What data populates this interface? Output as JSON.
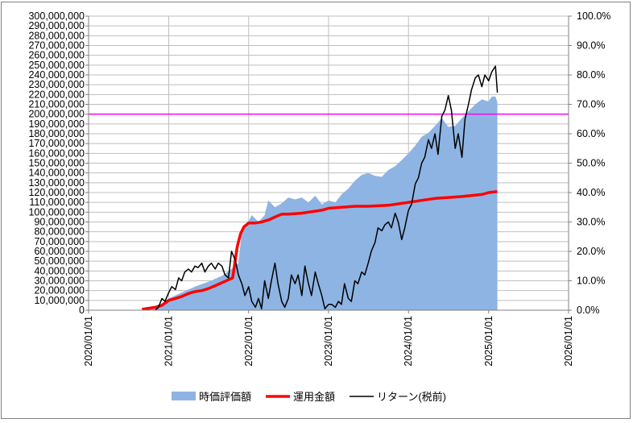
{
  "chart_data": {
    "type": "area",
    "x_tick_labels": [
      "2020/01/01",
      "2021/01/01",
      "2022/01/01",
      "2023/01/01",
      "2024/01/01",
      "2025/01/01",
      "2026/01/01"
    ],
    "x_range": [
      "2020/01/01",
      "2026/01/01"
    ],
    "y_left": {
      "min": 0,
      "max": 300000000,
      "step": 10000000,
      "tick_labels": [
        "0",
        "10,000,000",
        "20,000,000",
        "30,000,000",
        "40,000,000",
        "50,000,000",
        "60,000,000",
        "70,000,000",
        "80,000,000",
        "90,000,000",
        "100,000,000",
        "110,000,000",
        "120,000,000",
        "130,000,000",
        "140,000,000",
        "150,000,000",
        "160,000,000",
        "170,000,000",
        "180,000,000",
        "190,000,000",
        "200,000,000",
        "210,000,000",
        "220,000,000",
        "230,000,000",
        "240,000,000",
        "250,000,000",
        "260,000,000",
        "270,000,000",
        "280,000,000",
        "290,000,000",
        "300,000,000"
      ]
    },
    "y_right": {
      "min": 0,
      "max": 100,
      "step": 10,
      "unit": "%",
      "tick_labels": [
        "0.0%",
        "10.0%",
        "20.0%",
        "30.0%",
        "40.0%",
        "50.0%",
        "60.0%",
        "70.0%",
        "80.0%",
        "90.0%",
        "100.0%"
      ]
    },
    "grid": true,
    "legend_position": "bottom",
    "reference_line": {
      "y": 200000000,
      "axis": "left",
      "color": "#ff00ff"
    },
    "series": [
      {
        "name": "時価評価額",
        "kind": "area",
        "axis": "left",
        "color": "#8eb4e3",
        "points": [
          [
            "2020/09/01",
            0
          ],
          [
            "2020/10/15",
            3000000
          ],
          [
            "2020/12/01",
            7000000
          ],
          [
            "2021/01/01",
            12000000
          ],
          [
            "2021/03/01",
            18000000
          ],
          [
            "2021/05/01",
            24000000
          ],
          [
            "2021/07/01",
            29000000
          ],
          [
            "2021/09/01",
            35000000
          ],
          [
            "2021/10/15",
            42000000
          ],
          [
            "2021/11/15",
            48000000
          ],
          [
            "2021/12/01",
            80000000
          ],
          [
            "2021/12/20",
            86000000
          ],
          [
            "2022/01/15",
            97000000
          ],
          [
            "2022/02/15",
            90000000
          ],
          [
            "2022/03/15",
            97000000
          ],
          [
            "2022/04/01",
            112000000
          ],
          [
            "2022/05/01",
            105000000
          ],
          [
            "2022/06/01",
            109000000
          ],
          [
            "2022/07/01",
            115000000
          ],
          [
            "2022/08/01",
            113000000
          ],
          [
            "2022/09/01",
            115000000
          ],
          [
            "2022/10/01",
            110000000
          ],
          [
            "2022/11/01",
            117000000
          ],
          [
            "2022/12/01",
            108000000
          ],
          [
            "2023/01/01",
            112000000
          ],
          [
            "2023/02/01",
            110000000
          ],
          [
            "2023/03/01",
            118000000
          ],
          [
            "2023/04/01",
            124000000
          ],
          [
            "2023/05/01",
            132000000
          ],
          [
            "2023/06/01",
            138000000
          ],
          [
            "2023/07/01",
            140000000
          ],
          [
            "2023/08/01",
            137000000
          ],
          [
            "2023/09/01",
            136000000
          ],
          [
            "2023/10/01",
            143000000
          ],
          [
            "2023/11/01",
            147000000
          ],
          [
            "2023/12/01",
            153000000
          ],
          [
            "2024/01/01",
            160000000
          ],
          [
            "2024/02/01",
            168000000
          ],
          [
            "2024/03/01",
            177000000
          ],
          [
            "2024/04/01",
            181000000
          ],
          [
            "2024/05/01",
            188000000
          ],
          [
            "2024/06/01",
            196000000
          ],
          [
            "2024/07/01",
            187000000
          ],
          [
            "2024/08/01",
            188000000
          ],
          [
            "2024/09/01",
            196000000
          ],
          [
            "2024/10/01",
            203000000
          ],
          [
            "2024/11/01",
            210000000
          ],
          [
            "2024/12/01",
            215000000
          ],
          [
            "2025/01/01",
            213000000
          ],
          [
            "2025/01/15",
            218000000
          ],
          [
            "2025/02/01",
            218000000
          ],
          [
            "2025/02/10",
            212000000
          ],
          [
            "2025/02/10",
            0
          ]
        ]
      },
      {
        "name": "運用金額",
        "kind": "line",
        "axis": "left",
        "color": "#ff0000",
        "points": [
          [
            "2020/09/01",
            1000000
          ],
          [
            "2020/10/01",
            2000000
          ],
          [
            "2020/11/01",
            3000000
          ],
          [
            "2020/12/01",
            5000000
          ],
          [
            "2021/01/01",
            10000000
          ],
          [
            "2021/02/01",
            12000000
          ],
          [
            "2021/03/01",
            14000000
          ],
          [
            "2021/04/01",
            17000000
          ],
          [
            "2021/05/01",
            19000000
          ],
          [
            "2021/06/01",
            20000000
          ],
          [
            "2021/07/01",
            22000000
          ],
          [
            "2021/08/01",
            25000000
          ],
          [
            "2021/09/01",
            28000000
          ],
          [
            "2021/10/01",
            31000000
          ],
          [
            "2021/10/20",
            33000000
          ],
          [
            "2021/11/10",
            65000000
          ],
          [
            "2021/11/25",
            78000000
          ],
          [
            "2021/12/10",
            85000000
          ],
          [
            "2022/01/01",
            89000000
          ],
          [
            "2022/02/01",
            89000000
          ],
          [
            "2022/03/01",
            90000000
          ],
          [
            "2022/04/01",
            92000000
          ],
          [
            "2022/05/01",
            95000000
          ],
          [
            "2022/06/01",
            98000000
          ],
          [
            "2022/07/01",
            98000000
          ],
          [
            "2022/09/01",
            99000000
          ],
          [
            "2022/10/01",
            100000000
          ],
          [
            "2022/11/01",
            101000000
          ],
          [
            "2022/12/01",
            102000000
          ],
          [
            "2023/01/01",
            104000000
          ],
          [
            "2023/03/01",
            105000000
          ],
          [
            "2023/05/01",
            106000000
          ],
          [
            "2023/07/01",
            106000000
          ],
          [
            "2023/10/01",
            107000000
          ],
          [
            "2023/12/01",
            109000000
          ],
          [
            "2024/01/01",
            110000000
          ],
          [
            "2024/03/01",
            112000000
          ],
          [
            "2024/05/01",
            114000000
          ],
          [
            "2024/07/01",
            115000000
          ],
          [
            "2024/09/01",
            116000000
          ],
          [
            "2024/12/01",
            118000000
          ],
          [
            "2025/01/01",
            120000000
          ],
          [
            "2025/02/10",
            121000000
          ]
        ]
      },
      {
        "name": "リターン(税前)",
        "kind": "line",
        "axis": "right",
        "color": "#000000",
        "points": [
          [
            "2020/11/01",
            0.0
          ],
          [
            "2020/11/15",
            1.0
          ],
          [
            "2020/12/01",
            4.0
          ],
          [
            "2020/12/15",
            3.0
          ],
          [
            "2021/01/01",
            6.0
          ],
          [
            "2021/01/15",
            8.0
          ],
          [
            "2021/02/01",
            7.0
          ],
          [
            "2021/02/15",
            11.0
          ],
          [
            "2021/03/01",
            10.0
          ],
          [
            "2021/03/15",
            13.0
          ],
          [
            "2021/04/01",
            14.0
          ],
          [
            "2021/04/15",
            13.0
          ],
          [
            "2021/05/01",
            15.0
          ],
          [
            "2021/05/15",
            14.5
          ],
          [
            "2021/06/01",
            16.0
          ],
          [
            "2021/06/15",
            13.0
          ],
          [
            "2021/07/01",
            15.0
          ],
          [
            "2021/07/15",
            16.0
          ],
          [
            "2021/08/01",
            14.0
          ],
          [
            "2021/08/15",
            16.0
          ],
          [
            "2021/09/01",
            15.0
          ],
          [
            "2021/09/15",
            12.0
          ],
          [
            "2021/10/01",
            11.0
          ],
          [
            "2021/10/15",
            20.0
          ],
          [
            "2021/11/01",
            17.0
          ],
          [
            "2021/11/15",
            12.0
          ],
          [
            "2021/12/01",
            9.0
          ],
          [
            "2021/12/15",
            5.0
          ],
          [
            "2022/01/01",
            8.0
          ],
          [
            "2022/01/15",
            3.0
          ],
          [
            "2022/02/01",
            1.0
          ],
          [
            "2022/02/15",
            4.0
          ],
          [
            "2022/03/01",
            0.5
          ],
          [
            "2022/03/15",
            10.0
          ],
          [
            "2022/04/01",
            4.0
          ],
          [
            "2022/04/15",
            10.0
          ],
          [
            "2022/05/01",
            16.0
          ],
          [
            "2022/05/15",
            9.0
          ],
          [
            "2022/06/01",
            3.0
          ],
          [
            "2022/06/15",
            1.0
          ],
          [
            "2022/07/01",
            4.0
          ],
          [
            "2022/07/15",
            12.0
          ],
          [
            "2022/08/01",
            9.0
          ],
          [
            "2022/08/15",
            12.0
          ],
          [
            "2022/09/01",
            5.0
          ],
          [
            "2022/09/15",
            15.0
          ],
          [
            "2022/10/01",
            9.0
          ],
          [
            "2022/10/15",
            5.0
          ],
          [
            "2022/11/01",
            13.0
          ],
          [
            "2022/11/15",
            9.0
          ],
          [
            "2022/12/01",
            5.0
          ],
          [
            "2022/12/15",
            0.5
          ],
          [
            "2023/01/01",
            2.0
          ],
          [
            "2023/01/15",
            2.0
          ],
          [
            "2023/02/01",
            1.0
          ],
          [
            "2023/02/15",
            3.0
          ],
          [
            "2023/03/01",
            2.0
          ],
          [
            "2023/03/15",
            9.0
          ],
          [
            "2023/04/01",
            4.0
          ],
          [
            "2023/04/15",
            3.0
          ],
          [
            "2023/05/01",
            10.0
          ],
          [
            "2023/05/15",
            9.0
          ],
          [
            "2023/06/01",
            13.0
          ],
          [
            "2023/06/15",
            12.0
          ],
          [
            "2023/07/01",
            16.0
          ],
          [
            "2023/07/15",
            20.0
          ],
          [
            "2023/08/01",
            23.0
          ],
          [
            "2023/08/15",
            28.0
          ],
          [
            "2023/09/01",
            27.0
          ],
          [
            "2023/09/15",
            29.0
          ],
          [
            "2023/10/01",
            30.0
          ],
          [
            "2023/10/15",
            28.0
          ],
          [
            "2023/11/01",
            33.0
          ],
          [
            "2023/11/15",
            30.0
          ],
          [
            "2023/12/01",
            24.0
          ],
          [
            "2023/12/15",
            28.0
          ],
          [
            "2024/01/01",
            34.0
          ],
          [
            "2024/01/15",
            36.0
          ],
          [
            "2024/02/01",
            43.0
          ],
          [
            "2024/02/15",
            45.0
          ],
          [
            "2024/03/01",
            50.0
          ],
          [
            "2024/03/15",
            52.0
          ],
          [
            "2024/04/01",
            58.0
          ],
          [
            "2024/04/15",
            55.0
          ],
          [
            "2024/05/01",
            60.0
          ],
          [
            "2024/05/15",
            53.0
          ],
          [
            "2024/06/01",
            66.0
          ],
          [
            "2024/06/15",
            68.0
          ],
          [
            "2024/07/01",
            73.0
          ],
          [
            "2024/07/15",
            68.0
          ],
          [
            "2024/08/01",
            55.0
          ],
          [
            "2024/08/15",
            60.0
          ],
          [
            "2024/09/01",
            52.0
          ],
          [
            "2024/09/15",
            65.0
          ],
          [
            "2024/10/01",
            70.0
          ],
          [
            "2024/10/15",
            75.0
          ],
          [
            "2024/11/01",
            79.0
          ],
          [
            "2024/11/15",
            80.0
          ],
          [
            "2024/12/01",
            76.0
          ],
          [
            "2024/12/15",
            80.0
          ],
          [
            "2025/01/01",
            78.0
          ],
          [
            "2025/01/15",
            81.0
          ],
          [
            "2025/02/01",
            83.0
          ],
          [
            "2025/02/10",
            74.0
          ]
        ]
      }
    ]
  }
}
